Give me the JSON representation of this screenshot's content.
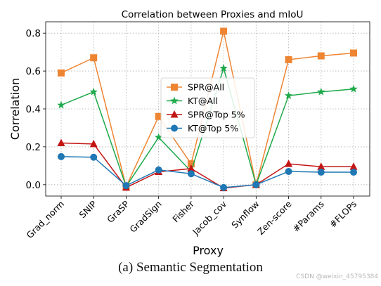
{
  "chart_data": {
    "type": "line",
    "title": "Correlation between Proxies and mIoU",
    "xlabel": "Proxy",
    "ylabel": "Correlation",
    "categories": [
      "Grad_norm",
      "SNIP",
      "GraSP",
      "GradSign",
      "Fisher",
      "Jacob_cov",
      "Synflow",
      "Zen-score",
      "#Params",
      "#FLOPs"
    ],
    "ylim": [
      -0.06,
      0.86
    ],
    "yticks": [
      0.0,
      0.2,
      0.4,
      0.6,
      0.8
    ],
    "ytick_labels": [
      "0.0",
      "0.2",
      "0.4",
      "0.6",
      "0.8"
    ],
    "grid": true,
    "legend_position": "center",
    "series": [
      {
        "name": "SPR@All",
        "color": "#ee8533",
        "marker": "square",
        "values": [
          0.59,
          0.67,
          -0.01,
          0.36,
          0.11,
          0.81,
          0.0,
          0.66,
          0.68,
          0.695
        ]
      },
      {
        "name": "KT@All",
        "color": "#1ea94a",
        "marker": "star",
        "values": [
          0.42,
          0.49,
          -0.01,
          0.25,
          0.07,
          0.615,
          0.0,
          0.47,
          0.49,
          0.505
        ]
      },
      {
        "name": "SPR@Top 5%",
        "color": "#c41515",
        "marker": "triangle",
        "values": [
          0.22,
          0.215,
          -0.015,
          0.068,
          0.085,
          -0.018,
          0.0,
          0.11,
          0.095,
          0.095
        ]
      },
      {
        "name": "KT@Top 5%",
        "color": "#1f77b4",
        "marker": "circle",
        "values": [
          0.148,
          0.145,
          -0.005,
          0.078,
          0.058,
          -0.015,
          0.0,
          0.07,
          0.066,
          0.066
        ]
      }
    ]
  },
  "caption": "(a) Semantic Segmentation",
  "watermark": "CSDN @weixin_45795384"
}
